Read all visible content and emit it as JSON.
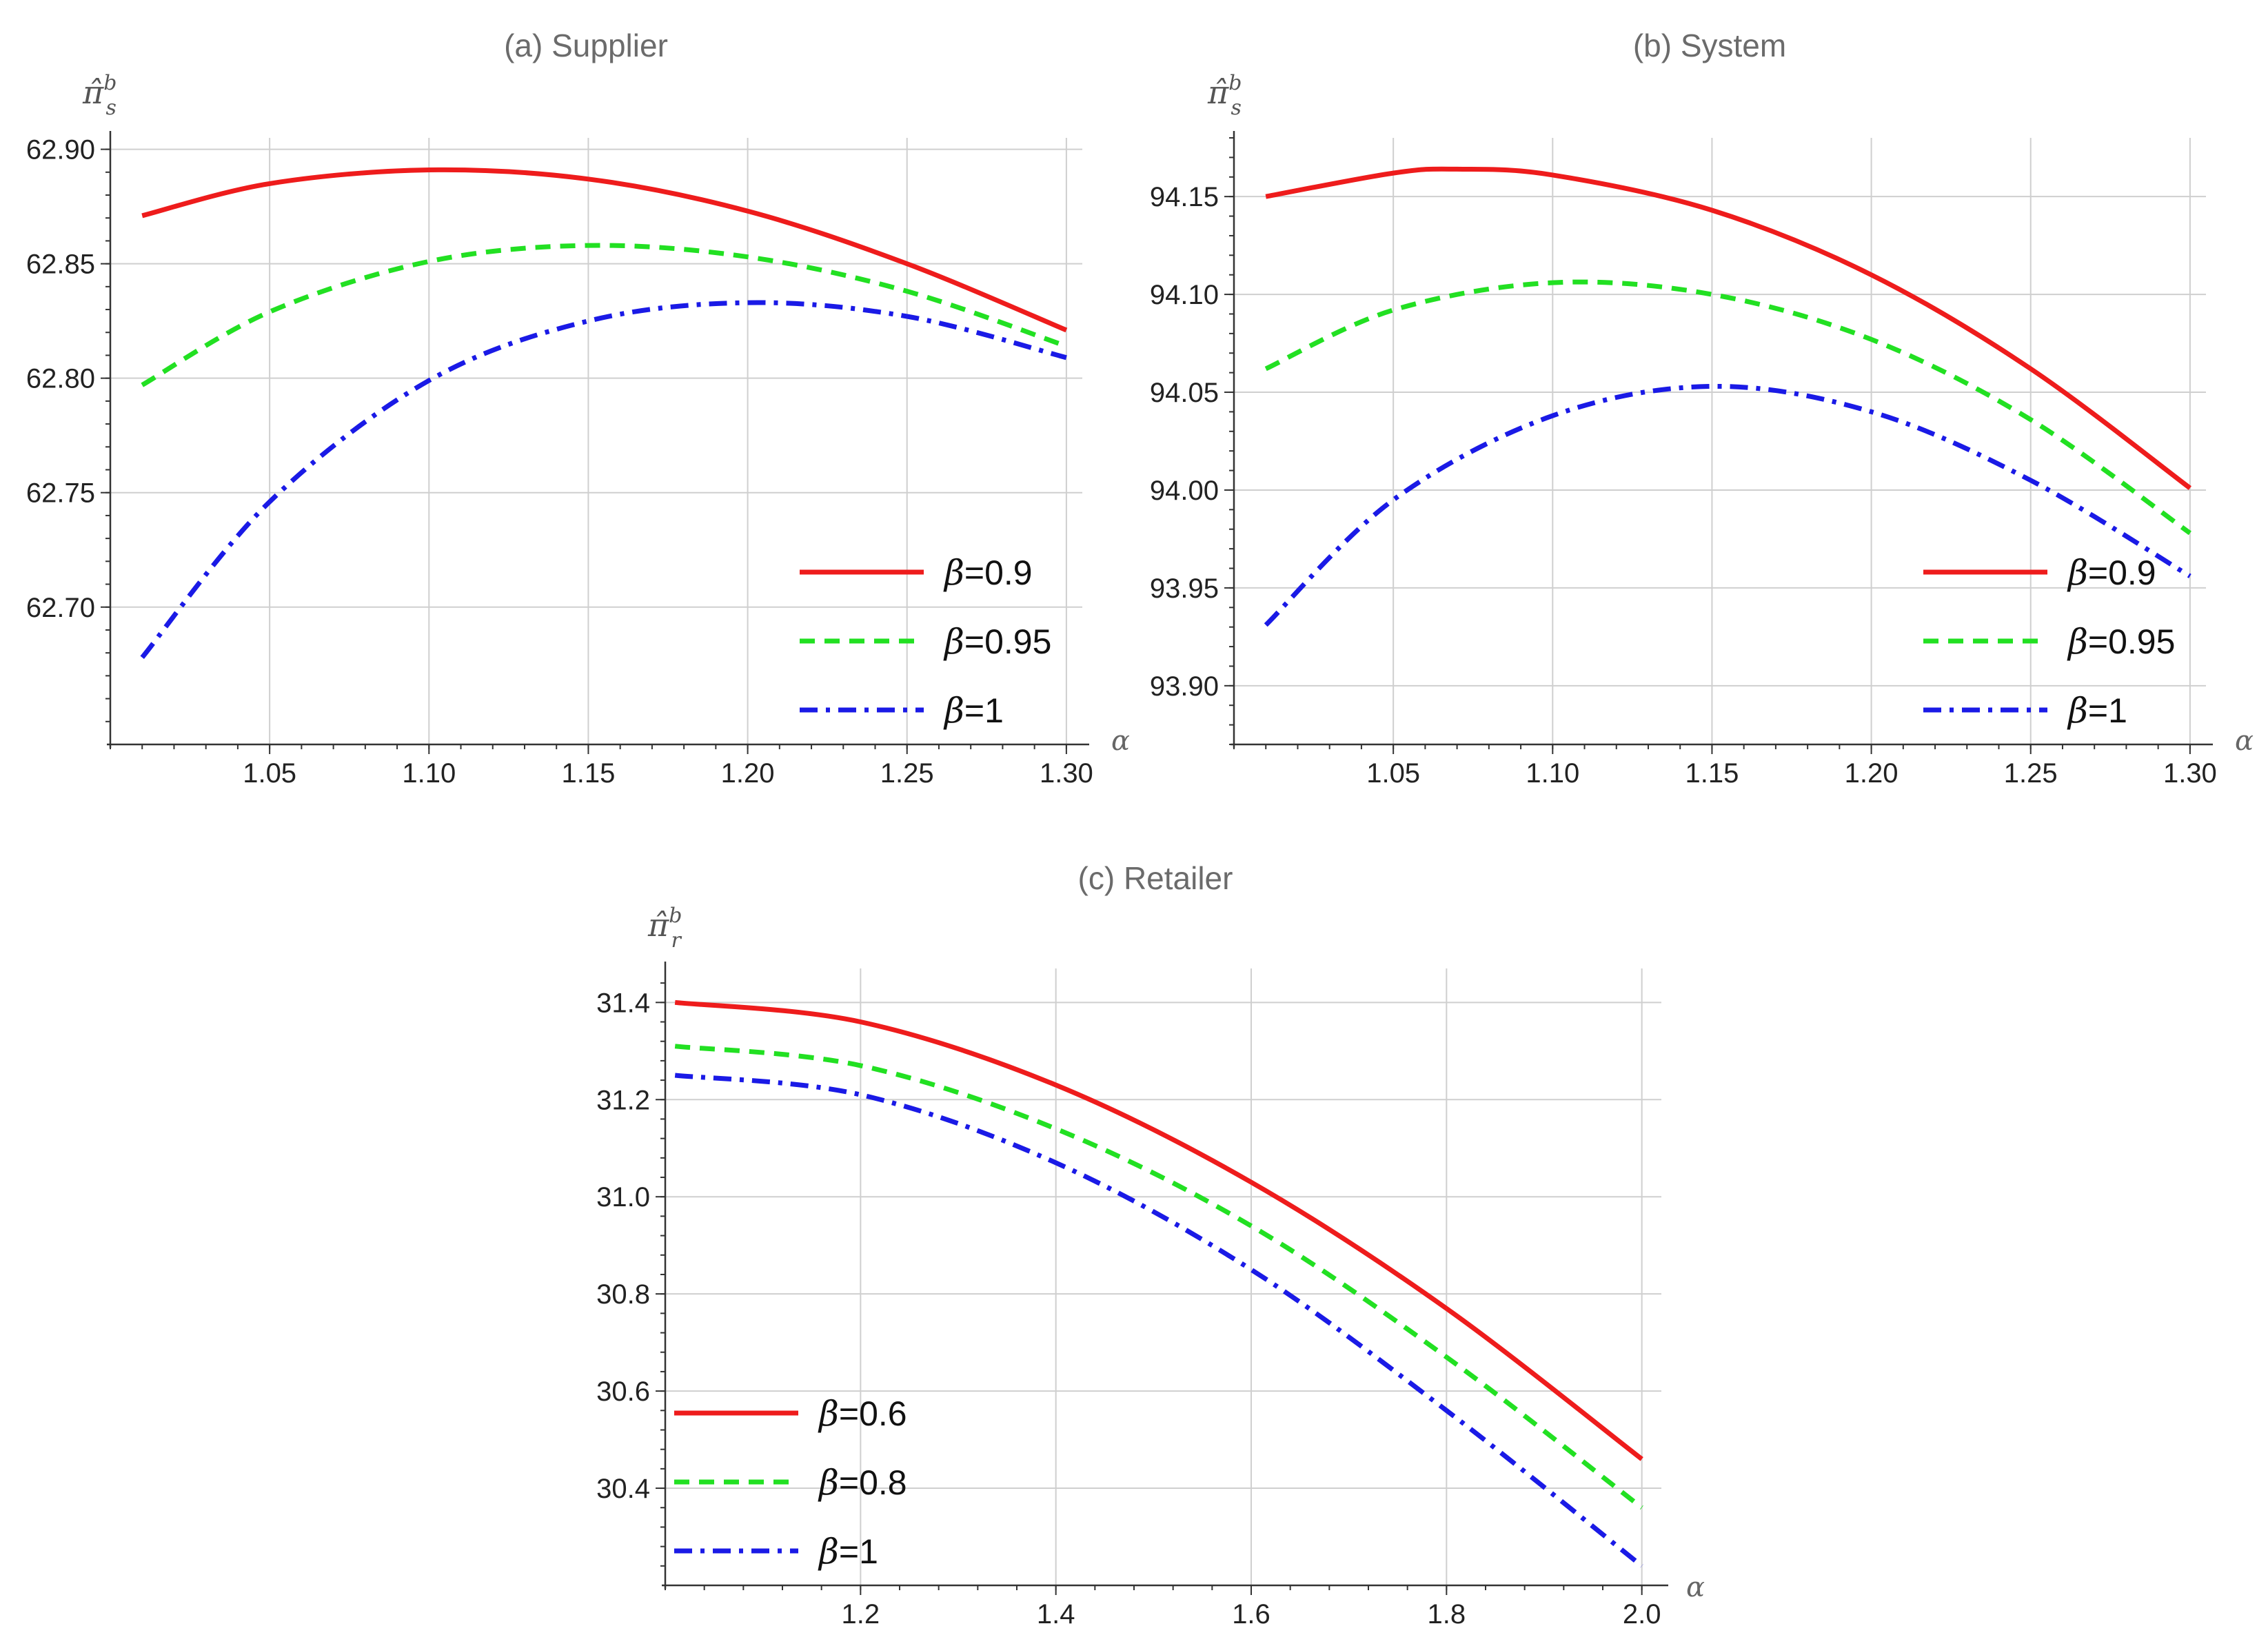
{
  "chart_data": [
    {
      "id": "supplier",
      "type": "line",
      "title": "(a) Supplier",
      "ylabel": "π̂ₛᵇ",
      "ylabel_main": "π̂",
      "ylabel_sup": "b",
      "ylabel_sub": "s",
      "xlabel": "α",
      "xlim": [
        1.0,
        1.305
      ],
      "ylim": [
        62.64,
        62.905
      ],
      "xticks": [
        1.05,
        1.1,
        1.15,
        1.2,
        1.25,
        1.3
      ],
      "xtick_labels": [
        "1.05",
        "1.10",
        "1.15",
        "1.20",
        "1.25",
        "1.30"
      ],
      "yticks": [
        62.7,
        62.75,
        62.8,
        62.85,
        62.9
      ],
      "ytick_labels": [
        "62.70",
        "62.75",
        "62.80",
        "62.85",
        "62.90"
      ],
      "legend_position": "bottom-right",
      "series": [
        {
          "name": "β=0.9",
          "label_prefix": "β",
          "label_value": "=0.9",
          "color": "#ee1c1c",
          "style": "solid",
          "x": [
            1.01,
            1.05,
            1.1,
            1.15,
            1.2,
            1.25,
            1.3
          ],
          "values": [
            62.871,
            62.885,
            62.891,
            62.887,
            62.873,
            62.85,
            62.821
          ]
        },
        {
          "name": "β=0.95",
          "label_prefix": "β",
          "label_value": "=0.95",
          "color": "#22e022",
          "style": "dashed",
          "x": [
            1.01,
            1.05,
            1.1,
            1.15,
            1.2,
            1.25,
            1.3
          ],
          "values": [
            62.797,
            62.829,
            62.851,
            62.858,
            62.853,
            62.838,
            62.814
          ]
        },
        {
          "name": "β=1",
          "label_prefix": "β",
          "label_value": "=1",
          "color": "#1a1ae6",
          "style": "dashdot",
          "x": [
            1.01,
            1.05,
            1.1,
            1.15,
            1.2,
            1.25,
            1.3
          ],
          "values": [
            62.678,
            62.746,
            62.799,
            62.825,
            62.833,
            62.827,
            62.809
          ]
        }
      ]
    },
    {
      "id": "system",
      "type": "line",
      "title": "(b) System",
      "ylabel": "π̂ₛᵇ",
      "ylabel_main": "π̂",
      "ylabel_sup": "b",
      "ylabel_sub": "s",
      "xlabel": "α",
      "xlim": [
        1.0,
        1.305
      ],
      "ylim": [
        93.87,
        94.18
      ],
      "xticks": [
        1.05,
        1.1,
        1.15,
        1.2,
        1.25,
        1.3
      ],
      "xtick_labels": [
        "1.05",
        "1.10",
        "1.15",
        "1.20",
        "1.25",
        "1.30"
      ],
      "yticks": [
        93.9,
        93.95,
        94.0,
        94.05,
        94.1,
        94.15
      ],
      "ytick_labels": [
        "93.90",
        "93.95",
        "94.00",
        "94.05",
        "94.10",
        "94.15"
      ],
      "legend_position": "bottom-right",
      "series": [
        {
          "name": "β=0.9",
          "label_prefix": "β",
          "label_value": "=0.9",
          "color": "#ee1c1c",
          "style": "solid",
          "x": [
            1.01,
            1.05,
            1.07,
            1.1,
            1.15,
            1.2,
            1.25,
            1.3
          ],
          "values": [
            94.15,
            94.162,
            94.164,
            94.161,
            94.143,
            94.11,
            94.062,
            94.001
          ]
        },
        {
          "name": "β=0.95",
          "label_prefix": "β",
          "label_value": "=0.95",
          "color": "#22e022",
          "style": "dashed",
          "x": [
            1.01,
            1.05,
            1.1,
            1.15,
            1.2,
            1.25,
            1.3
          ],
          "values": [
            94.062,
            94.092,
            94.106,
            94.1,
            94.077,
            94.036,
            93.978
          ]
        },
        {
          "name": "β=1",
          "label_prefix": "β",
          "label_value": "=1",
          "color": "#1a1ae6",
          "style": "dashdot",
          "x": [
            1.01,
            1.05,
            1.1,
            1.15,
            1.2,
            1.25,
            1.3
          ],
          "values": [
            93.931,
            93.995,
            94.038,
            94.053,
            94.04,
            94.005,
            93.956
          ]
        }
      ]
    },
    {
      "id": "retailer",
      "type": "line",
      "title": "(c) Retailer",
      "ylabel": "π̂ᵣᵇ",
      "ylabel_main": "π̂",
      "ylabel_sup": "b",
      "ylabel_sub": "r",
      "xlabel": "α",
      "xlim": [
        1.0,
        2.02
      ],
      "ylim": [
        30.2,
        31.47
      ],
      "xticks": [
        1.2,
        1.4,
        1.6,
        1.8,
        2.0
      ],
      "xtick_labels": [
        "1.2",
        "1.4",
        "1.6",
        "1.8",
        "2.0"
      ],
      "yticks": [
        30.4,
        30.6,
        30.8,
        31.0,
        31.2,
        31.4
      ],
      "ytick_labels": [
        "30.4",
        "30.6",
        "30.8",
        "31.0",
        "31.2",
        "31.4"
      ],
      "legend_position": "bottom-left",
      "series": [
        {
          "name": "β=0.6",
          "label_prefix": "β",
          "label_value": "=0.6",
          "color": "#ee1c1c",
          "style": "solid",
          "x": [
            1.01,
            1.2,
            1.4,
            1.6,
            1.8,
            2.0
          ],
          "values": [
            31.4,
            31.36,
            31.23,
            31.03,
            30.77,
            30.46
          ]
        },
        {
          "name": "β=0.8",
          "label_prefix": "β",
          "label_value": "=0.8",
          "color": "#22e022",
          "style": "dashed",
          "x": [
            1.01,
            1.2,
            1.4,
            1.6,
            1.8,
            2.0
          ],
          "values": [
            31.31,
            31.27,
            31.14,
            30.94,
            30.67,
            30.36
          ]
        },
        {
          "name": "β=1",
          "label_prefix": "β",
          "label_value": "=1",
          "color": "#1a1ae6",
          "style": "dashdot",
          "x": [
            1.01,
            1.2,
            1.4,
            1.6,
            1.8,
            2.0
          ],
          "values": [
            31.25,
            31.21,
            31.07,
            30.85,
            30.56,
            30.24
          ]
        }
      ]
    }
  ]
}
